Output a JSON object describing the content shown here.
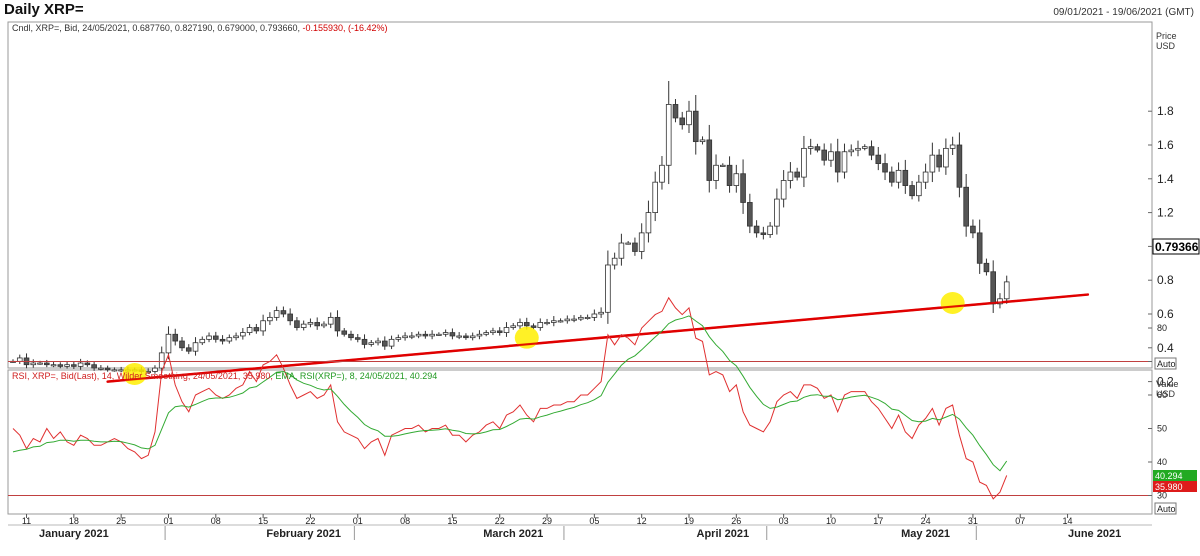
{
  "header": {
    "title": "Daily XRP=",
    "date_range": "09/01/2021 - 19/06/2021 (GMT)"
  },
  "colors": {
    "bull": "#ffffff",
    "bear": "#555555",
    "wick": "#333333",
    "trendline": "#e00000",
    "highlight": "#ffee00",
    "rsi": "#e03030",
    "ema": "#33aa33",
    "ref_lines": "#c04040",
    "last_price_bg": "#ffffff",
    "rsi_tag_bg": "#e02020",
    "ema_tag_bg": "#22aa22"
  },
  "price_panel": {
    "legend_prefix": "Cndl, XRP=, Bid, 24/05/2021, 0.687760, 0.827190, 0.679000, 0.793660, ",
    "legend_change": "-0.155930, (-16.42%)",
    "axis_title_1": "Price",
    "axis_title_2": "USD",
    "last_price_label": "0.79366",
    "auto_label": "Auto"
  },
  "rsi_panel": {
    "legend_red": "RSI, XRP=, Bid(Last),  14, Wilder Smoothing, 24/05/2021, 35.980,",
    "legend_green": "EMA, RSI(XRP=),  8, 24/05/2021, 40.294",
    "axis_title_1": "Value",
    "axis_title_2": "USD",
    "ema_tag": "40.294",
    "rsi_tag": "35.980",
    "auto_label": "Auto"
  },
  "chart_data": [
    {
      "type": "candlestick",
      "ylabel": "Price USD",
      "ylim": [
        0.1,
        2.0
      ],
      "yticks": [
        0.2,
        0.4,
        0.6,
        0.8,
        1,
        1.2,
        1.4,
        1.6,
        1.8
      ],
      "x_ticks": [
        "11",
        "18",
        "25",
        "01",
        "08",
        "15",
        "22",
        "01",
        "08",
        "15",
        "22",
        "29",
        "05",
        "12",
        "19",
        "26",
        "03",
        "10",
        "17",
        "24",
        "31",
        "07",
        "14"
      ],
      "x_tick_days": [
        2,
        9,
        16,
        23,
        30,
        37,
        44,
        51,
        58,
        65,
        72,
        79,
        86,
        93,
        100,
        107,
        114,
        121,
        128,
        135,
        142,
        149,
        156
      ],
      "month_labels": [
        "January 2021",
        "February 2021",
        "March 2021",
        "April 2021",
        "May 2021",
        "June 2021"
      ],
      "month_label_days": [
        9,
        43,
        74,
        105,
        135,
        160
      ],
      "month_separator_days": [
        22.5,
        50.5,
        81.5,
        111.5,
        142.5
      ],
      "closes": [
        0.32,
        0.34,
        0.3,
        0.31,
        0.31,
        0.3,
        0.3,
        0.29,
        0.3,
        0.29,
        0.31,
        0.3,
        0.28,
        0.28,
        0.27,
        0.27,
        0.27,
        0.27,
        0.27,
        0.26,
        0.26,
        0.28,
        0.37,
        0.48,
        0.44,
        0.4,
        0.38,
        0.43,
        0.45,
        0.47,
        0.45,
        0.44,
        0.46,
        0.47,
        0.49,
        0.52,
        0.5,
        0.56,
        0.58,
        0.62,
        0.6,
        0.56,
        0.52,
        0.54,
        0.55,
        0.53,
        0.54,
        0.58,
        0.5,
        0.48,
        0.46,
        0.45,
        0.42,
        0.43,
        0.44,
        0.41,
        0.45,
        0.46,
        0.47,
        0.47,
        0.48,
        0.47,
        0.48,
        0.48,
        0.49,
        0.47,
        0.47,
        0.46,
        0.47,
        0.48,
        0.49,
        0.5,
        0.49,
        0.52,
        0.53,
        0.55,
        0.53,
        0.52,
        0.55,
        0.55,
        0.56,
        0.56,
        0.57,
        0.57,
        0.58,
        0.58,
        0.6,
        0.61,
        0.89,
        0.93,
        1.02,
        1.02,
        0.97,
        1.08,
        1.2,
        1.38,
        1.48,
        1.84,
        1.76,
        1.72,
        1.8,
        1.62,
        1.63,
        1.39,
        1.48,
        1.48,
        1.36,
        1.43,
        1.26,
        1.12,
        1.08,
        1.07,
        1.12,
        1.28,
        1.39,
        1.44,
        1.41,
        1.58,
        1.59,
        1.57,
        1.51,
        1.56,
        1.44,
        1.56,
        1.57,
        1.58,
        1.59,
        1.54,
        1.49,
        1.44,
        1.38,
        1.45,
        1.36,
        1.3,
        1.38,
        1.44,
        1.54,
        1.47,
        1.58,
        1.6,
        1.35,
        1.12,
        1.08,
        0.9,
        0.85,
        0.66,
        0.69,
        0.79
      ],
      "trendline": {
        "from": [
          14,
          0.2
        ],
        "to": [
          159,
          0.715
        ]
      },
      "highlights": [
        [
          18,
          0.245
        ],
        [
          76,
          0.46
        ],
        [
          139,
          0.665
        ]
      ]
    },
    {
      "type": "line",
      "ylabel": "Value USD",
      "ylim": [
        25,
        93
      ],
      "yticks": [
        30,
        40,
        50,
        60,
        70,
        80
      ],
      "reference_lines": [
        70,
        30
      ],
      "series": [
        {
          "name": "RSI",
          "values": [
            50,
            48,
            44,
            47,
            46,
            50,
            47,
            49,
            46,
            45,
            48,
            47,
            45,
            45,
            46,
            47,
            46,
            44,
            43,
            41,
            42,
            49,
            67,
            72,
            63,
            58,
            55,
            60,
            61,
            62,
            60,
            59,
            60,
            62,
            63,
            67,
            64,
            69,
            70,
            72,
            68,
            63,
            59,
            60,
            61,
            59,
            60,
            63,
            52,
            49,
            48,
            47,
            44,
            46,
            47,
            42,
            48,
            49,
            50,
            50,
            51,
            49,
            50,
            50,
            51,
            48,
            48,
            46,
            48,
            49,
            51,
            52,
            50,
            54,
            55,
            57,
            54,
            52,
            56,
            56,
            57,
            57,
            58,
            58,
            60,
            60,
            62,
            64,
            78,
            75,
            78,
            77,
            75,
            80,
            82,
            84,
            85,
            89,
            86,
            84,
            86,
            77,
            76,
            66,
            67,
            66,
            61,
            63,
            55,
            51,
            50,
            49,
            52,
            58,
            60,
            61,
            59,
            63,
            63,
            62,
            59,
            60,
            55,
            60,
            61,
            61,
            61,
            58,
            56,
            53,
            50,
            54,
            49,
            47,
            51,
            53,
            56,
            51,
            56,
            57,
            48,
            41,
            40,
            34,
            33,
            29,
            31,
            36
          ],
          "color_key": "rsi"
        },
        {
          "name": "EMA",
          "values": [
            43,
            43.5,
            43.8,
            44.5,
            44.7,
            45.8,
            46,
            46.5,
            46.5,
            46.2,
            46.5,
            46.5,
            46.2,
            46,
            46,
            46.2,
            46.1,
            45.6,
            45.1,
            44.2,
            43.9,
            45,
            49.8,
            54.7,
            56.5,
            56.8,
            56.4,
            57.2,
            58.1,
            58.9,
            59.1,
            59.1,
            59.3,
            59.9,
            60.6,
            62.1,
            62.5,
            63.9,
            65.3,
            66.8,
            67,
            66.1,
            64.5,
            63.5,
            62.9,
            62,
            61.5,
            61.8,
            59.6,
            57.2,
            55.1,
            53.3,
            51.2,
            50,
            49.3,
            47.7,
            47.7,
            47.9,
            48.4,
            48.8,
            49.2,
            49.4,
            49.5,
            49.6,
            49.9,
            49.5,
            49.2,
            48.5,
            48.4,
            48.5,
            49,
            49.6,
            49.7,
            50.6,
            51.6,
            52.8,
            53,
            52.8,
            53.5,
            54,
            54.7,
            55.2,
            55.8,
            56.3,
            57.1,
            57.7,
            58.6,
            59.8,
            63.8,
            66.3,
            68.9,
            70.7,
            71.7,
            73.5,
            75.4,
            77.3,
            79.1,
            81.3,
            82.4,
            82.9,
            83.6,
            82.1,
            80.7,
            77.4,
            75,
            73,
            70.3,
            68.7,
            65.6,
            62.3,
            59.6,
            57.2,
            56,
            56.4,
            57.2,
            58,
            58.2,
            59.3,
            59.9,
            60.1,
            59.6,
            59.6,
            58.6,
            58.9,
            59.4,
            59.7,
            59.9,
            59.3,
            58.6,
            57.5,
            55.8,
            55.4,
            53.9,
            52.4,
            52,
            52.2,
            53,
            52.6,
            53.4,
            54.2,
            52.8,
            50.2,
            48,
            44.9,
            42.2,
            39.2,
            37.4,
            40.3
          ],
          "color_key": "ema"
        }
      ],
      "first_day": 0
    }
  ]
}
